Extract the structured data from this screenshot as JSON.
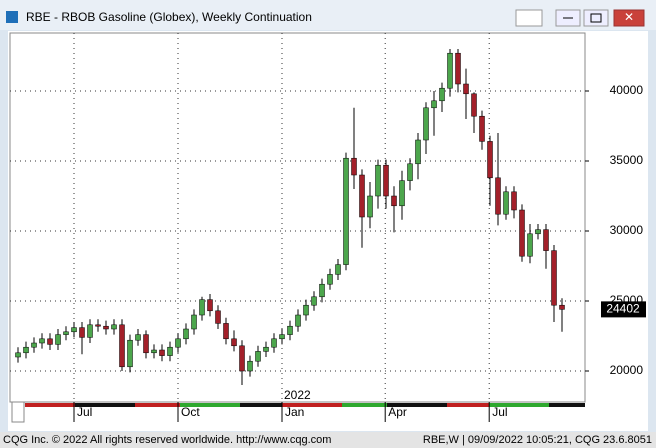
{
  "window": {
    "footer_left": "CQG Inc. © 2022 All rights reserved worldwide. http://www.cqg.com",
    "footer_right": "RBE,W | 09/09/2022 10:05:21, CQG 23.6.8051"
  },
  "chart_data": {
    "type": "candlestick",
    "title": "RBE - RBOB Gasoline (Globex), Weekly Continuation",
    "up_color": "#4ca64c",
    "down_color": "#a3202a",
    "open": [
      21000,
      21300,
      21700,
      22000,
      22300,
      21900,
      22600,
      22800,
      23100,
      22400,
      23300,
      23200,
      23000,
      23300,
      20300,
      22200,
      22600,
      21300,
      21500,
      21100,
      21700,
      22300,
      23000,
      24000,
      25100,
      24300,
      23400,
      22300,
      21800,
      20000,
      20700,
      21400,
      21700,
      22300,
      22600,
      23200,
      24000,
      24700,
      25300,
      26200,
      26900,
      27600,
      35200,
      34000,
      31000,
      32500,
      34700,
      32500,
      31800,
      33600,
      34800,
      36500,
      38800,
      39300,
      40200,
      42700,
      40500,
      39800,
      38200,
      36400,
      33800,
      31200,
      32800,
      31500,
      28200,
      29800,
      30100,
      28600,
      24700
    ],
    "high": [
      21700,
      22100,
      22400,
      22700,
      22700,
      23000,
      23200,
      23500,
      23500,
      23700,
      23700,
      23600,
      23700,
      23700,
      22600,
      23000,
      22900,
      21900,
      21900,
      22100,
      22700,
      23400,
      24400,
      25300,
      25500,
      24700,
      23800,
      22900,
      22200,
      21100,
      21800,
      22100,
      22700,
      23000,
      23600,
      24400,
      25100,
      25700,
      26600,
      27300,
      28000,
      35600,
      38800,
      34400,
      33500,
      35100,
      35100,
      33200,
      34300,
      35200,
      37000,
      39200,
      40000,
      40600,
      43000,
      43000,
      41600,
      39900,
      38600,
      36800,
      37000,
      33200,
      33200,
      31900,
      30500,
      30500,
      30500,
      29000,
      25200
    ],
    "low": [
      20600,
      20900,
      21300,
      21600,
      21500,
      21500,
      22200,
      22400,
      21200,
      22000,
      22800,
      22600,
      22600,
      20000,
      19900,
      21800,
      20900,
      20900,
      20700,
      20700,
      21300,
      21900,
      22600,
      23600,
      23900,
      23000,
      21900,
      21400,
      19000,
      19600,
      20300,
      21000,
      21300,
      21900,
      22200,
      22800,
      23600,
      24300,
      24900,
      25800,
      26500,
      27200,
      33000,
      28800,
      30200,
      31600,
      31600,
      29900,
      30800,
      32900,
      33700,
      35500,
      36800,
      38500,
      39600,
      39900,
      38000,
      37000,
      35800,
      31800,
      30400,
      30800,
      30900,
      27800,
      27700,
      29400,
      27300,
      23500,
      22800
    ],
    "close": [
      21300,
      21700,
      22000,
      22300,
      21900,
      22600,
      22800,
      23100,
      22400,
      23300,
      23200,
      23000,
      23300,
      20300,
      22200,
      22600,
      21300,
      21500,
      21100,
      21700,
      22300,
      23000,
      24000,
      25100,
      24300,
      23400,
      22300,
      21800,
      20000,
      20700,
      21400,
      21700,
      22300,
      22600,
      23200,
      24000,
      24700,
      25300,
      26200,
      26900,
      27600,
      35200,
      34000,
      31000,
      32500,
      34700,
      32500,
      31800,
      33600,
      34800,
      36500,
      38800,
      39300,
      40200,
      42700,
      40500,
      39800,
      38200,
      36400,
      33800,
      31200,
      32800,
      31500,
      28200,
      29800,
      30100,
      28600,
      24700,
      24402
    ],
    "last_price": 24402,
    "xlim": [
      -1,
      70.875
    ],
    "xticks": [
      {
        "value": 7,
        "label": "Jul"
      },
      {
        "value": 20,
        "label": "Oct"
      },
      {
        "value": 33,
        "label": "Jan"
      },
      {
        "value": 45.9,
        "label": "Apr"
      },
      {
        "value": 58.9,
        "label": "Jul"
      }
    ],
    "year_label": "2022",
    "ylim": [
      17786,
      44143
    ],
    "yticks": [
      20000,
      25000,
      30000,
      35000,
      40000
    ],
    "grid": true
  }
}
